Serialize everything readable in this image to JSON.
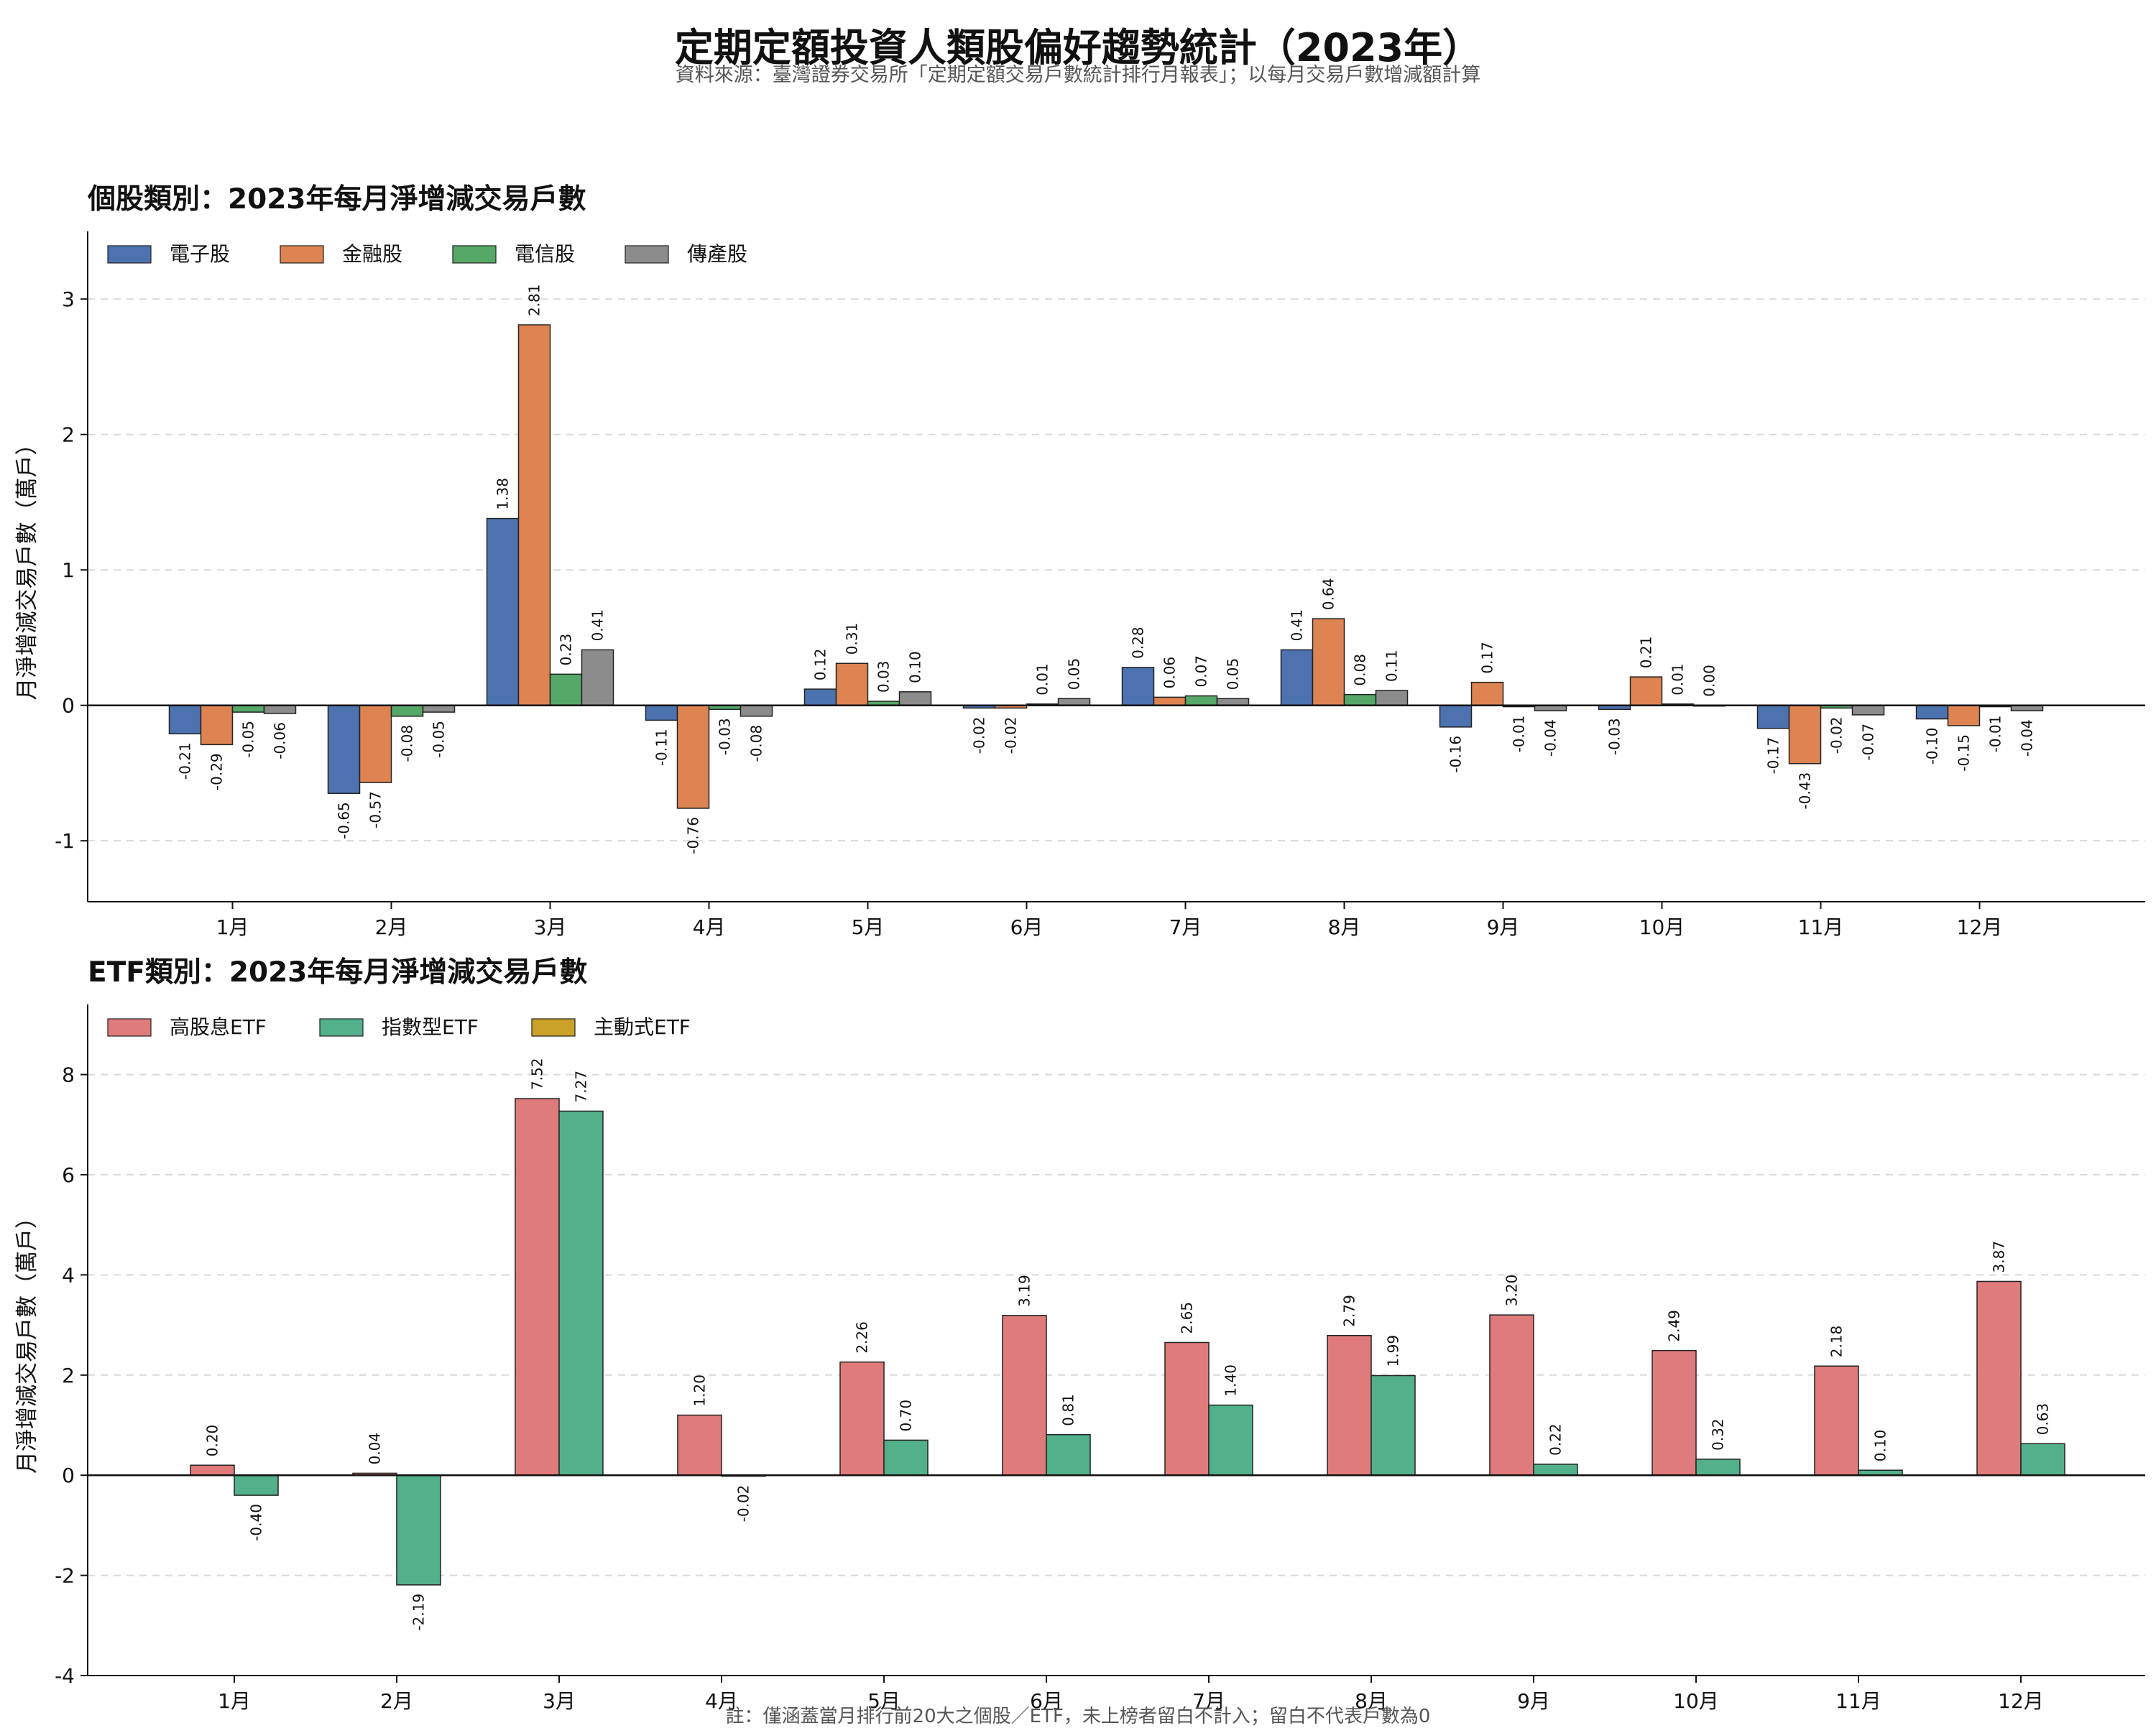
{
  "title": "定期定額投資人類股偏好趨勢統計（2023年）",
  "subtitle": "資料來源：臺灣證券交易所「定期定額交易戶數統計排行月報表」；以每月交易戶數增減額計算",
  "note": "註：僅涵蓋當月排行前20大之個股／ETF，未上榜者留白不計入；留白不代表戶數為0",
  "chart_data": [
    {
      "type": "bar",
      "title": "個股類別：2023年每月淨增減交易戶數",
      "ylabel": "月淨增減交易戶數（萬戶）",
      "categories": [
        "1月",
        "2月",
        "3月",
        "4月",
        "5月",
        "6月",
        "7月",
        "8月",
        "9月",
        "10月",
        "11月",
        "12月"
      ],
      "ylim": [
        -1.45,
        3.5
      ],
      "yticks": [
        -1,
        0,
        1,
        2,
        3
      ],
      "grid": "horizontal-dashed",
      "legend": "top-left",
      "series": [
        {
          "name": "電子股",
          "color": "#4c72b0",
          "values": [
            -0.21,
            -0.65,
            1.38,
            -0.11,
            0.12,
            -0.02,
            0.28,
            0.41,
            -0.16,
            -0.03,
            -0.17,
            -0.1
          ],
          "labels": [
            "-0.21",
            "-0.65",
            "1.38",
            "-0.11",
            "0.12",
            "-0.02",
            "0.28",
            "0.41",
            "-0.16",
            "-0.03",
            "-0.17",
            "-0.10"
          ]
        },
        {
          "name": "金融股",
          "color": "#dd8452",
          "values": [
            -0.29,
            -0.57,
            2.81,
            -0.76,
            0.31,
            -0.02,
            0.06,
            0.64,
            0.17,
            0.21,
            -0.43,
            -0.15
          ],
          "labels": [
            "-0.29",
            "-0.57",
            "2.81",
            "-0.76",
            "0.31",
            "-0.02",
            "0.06",
            "0.64",
            "0.17",
            "0.21",
            "-0.43",
            "-0.15"
          ]
        },
        {
          "name": "電信股",
          "color": "#55a868",
          "values": [
            -0.05,
            -0.08,
            0.23,
            -0.03,
            0.03,
            0.01,
            0.07,
            0.08,
            -0.01,
            0.01,
            -0.02,
            -0.01
          ],
          "labels": [
            "-0.05",
            "-0.08",
            "0.23",
            "-0.03",
            "0.03",
            "0.01",
            "0.07",
            "0.08",
            "-0.01",
            "0.01",
            "-0.02",
            "-0.01"
          ]
        },
        {
          "name": "傳產股",
          "color": "#8c8c8c",
          "values": [
            -0.06,
            -0.05,
            0.41,
            -0.08,
            0.1,
            0.05,
            0.05,
            0.11,
            -0.04,
            0.0,
            -0.07,
            -0.04
          ],
          "labels": [
            "-0.06",
            "-0.05",
            "0.41",
            "-0.08",
            "0.10",
            "0.05",
            "0.05",
            "0.11",
            "-0.04",
            "0.00",
            "-0.07",
            "-0.04"
          ]
        }
      ]
    },
    {
      "type": "bar",
      "title": "ETF類別：2023年每月淨增減交易戶數",
      "ylabel": "月淨增減交易戶數（萬戶）",
      "categories": [
        "1月",
        "2月",
        "3月",
        "4月",
        "5月",
        "6月",
        "7月",
        "8月",
        "9月",
        "10月",
        "11月",
        "12月"
      ],
      "ylim": [
        -4,
        9.4
      ],
      "yticks": [
        -4,
        -2,
        0,
        2,
        4,
        6,
        8
      ],
      "grid": "horizontal-dashed",
      "legend": "top-left",
      "series": [
        {
          "name": "高股息ETF",
          "color": "#e07b7b",
          "values": [
            0.2,
            0.04,
            7.52,
            1.2,
            2.26,
            3.19,
            2.65,
            2.79,
            3.2,
            2.49,
            2.18,
            3.87
          ],
          "labels": [
            "0.20",
            "0.04",
            "7.52",
            "1.20",
            "2.26",
            "3.19",
            "2.65",
            "2.79",
            "3.20",
            "2.49",
            "2.18",
            "3.87"
          ]
        },
        {
          "name": "指數型ETF",
          "color": "#52b08a",
          "values": [
            -0.4,
            -2.19,
            7.27,
            -0.02,
            0.7,
            0.81,
            1.4,
            1.99,
            0.22,
            0.32,
            0.1,
            0.63
          ],
          "labels": [
            "-0.40",
            "-2.19",
            "7.27",
            "-0.02",
            "0.70",
            "0.81",
            "1.40",
            "1.99",
            "0.22",
            "0.32",
            "0.10",
            "0.63"
          ]
        },
        {
          "name": "主動式ETF",
          "color": "#c9a227",
          "values": [
            null,
            null,
            null,
            null,
            null,
            null,
            null,
            null,
            null,
            null,
            null,
            null
          ],
          "labels": []
        }
      ]
    }
  ]
}
